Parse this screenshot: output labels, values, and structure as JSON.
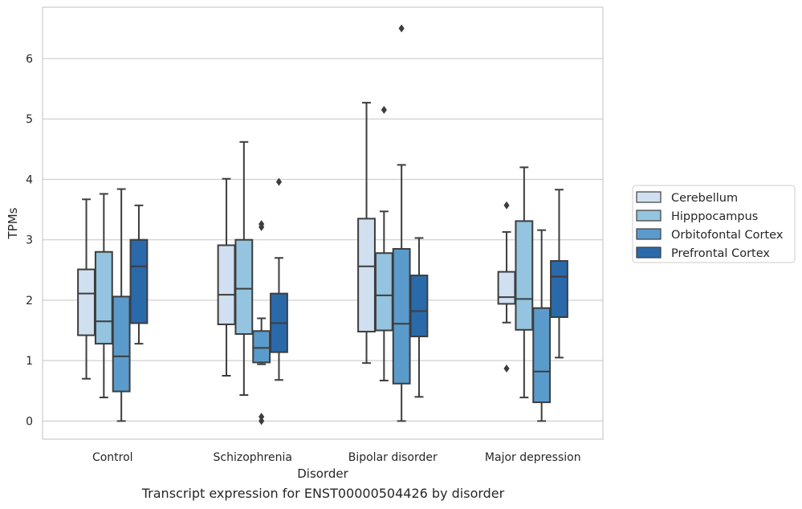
{
  "chart_data": {
    "type": "box",
    "title": "",
    "caption": "Transcript expression for ENST00000504426 by disorder",
    "xlabel": "Disorder",
    "ylabel": "TPMs",
    "ylim": [
      -0.3,
      6.85
    ],
    "yticks": [
      0,
      1,
      2,
      3,
      4,
      5,
      6
    ],
    "grid": "horizontal",
    "legend_position": "right",
    "categories": [
      "Control",
      "Schizophrenia",
      "Bipolar disorder",
      "Major depression"
    ],
    "series": [
      {
        "name": "Cerebellum",
        "color": "#d0e0f1",
        "boxes": [
          {
            "whislo": 0.7,
            "q1": 1.42,
            "med": 2.11,
            "q3": 2.51,
            "whishi": 3.67,
            "fliers": []
          },
          {
            "whislo": 0.75,
            "q1": 1.6,
            "med": 2.09,
            "q3": 2.91,
            "whishi": 4.01,
            "fliers": []
          },
          {
            "whislo": 0.96,
            "q1": 1.48,
            "med": 2.56,
            "q3": 3.35,
            "whishi": 5.27,
            "fliers": []
          },
          {
            "whislo": 1.63,
            "q1": 1.94,
            "med": 2.05,
            "q3": 2.47,
            "whishi": 3.13,
            "fliers": [
              0.87,
              3.57
            ]
          }
        ]
      },
      {
        "name": "Hipppocampus",
        "color": "#94c4df",
        "boxes": [
          {
            "whislo": 0.39,
            "q1": 1.28,
            "med": 1.65,
            "q3": 2.8,
            "whishi": 3.76,
            "fliers": []
          },
          {
            "whislo": 0.43,
            "q1": 1.44,
            "med": 2.19,
            "q3": 3.0,
            "whishi": 4.62,
            "fliers": []
          },
          {
            "whislo": 0.67,
            "q1": 1.5,
            "med": 2.08,
            "q3": 2.78,
            "whishi": 3.47,
            "fliers": [
              5.15
            ]
          },
          {
            "whislo": 0.39,
            "q1": 1.51,
            "med": 2.02,
            "q3": 3.31,
            "whishi": 4.2,
            "fliers": []
          }
        ]
      },
      {
        "name": "Orbitofontal Cortex",
        "color": "#5a9bcc",
        "boxes": [
          {
            "whislo": 0.0,
            "q1": 0.49,
            "med": 1.07,
            "q3": 2.06,
            "whishi": 3.84,
            "fliers": []
          },
          {
            "whislo": 0.94,
            "q1": 0.97,
            "med": 1.21,
            "q3": 1.49,
            "whishi": 1.7,
            "fliers": [
              0.0,
              0.07,
              3.21,
              3.26
            ]
          },
          {
            "whislo": 0.0,
            "q1": 0.62,
            "med": 1.61,
            "q3": 2.85,
            "whishi": 4.24,
            "fliers": [
              6.5
            ]
          },
          {
            "whislo": 0.0,
            "q1": 0.31,
            "med": 0.82,
            "q3": 1.87,
            "whishi": 3.16,
            "fliers": []
          }
        ]
      },
      {
        "name": "Prefrontal Cortex",
        "color": "#2a6aab",
        "boxes": [
          {
            "whislo": 1.28,
            "q1": 1.62,
            "med": 2.56,
            "q3": 3.0,
            "whishi": 3.57,
            "fliers": []
          },
          {
            "whislo": 0.68,
            "q1": 1.14,
            "med": 1.62,
            "q3": 2.11,
            "whishi": 2.7,
            "fliers": [
              3.96
            ]
          },
          {
            "whislo": 0.4,
            "q1": 1.4,
            "med": 1.82,
            "q3": 2.41,
            "whishi": 3.03,
            "fliers": []
          },
          {
            "whislo": 1.05,
            "q1": 1.72,
            "med": 2.39,
            "q3": 2.65,
            "whishi": 3.83,
            "fliers": []
          }
        ]
      }
    ]
  }
}
